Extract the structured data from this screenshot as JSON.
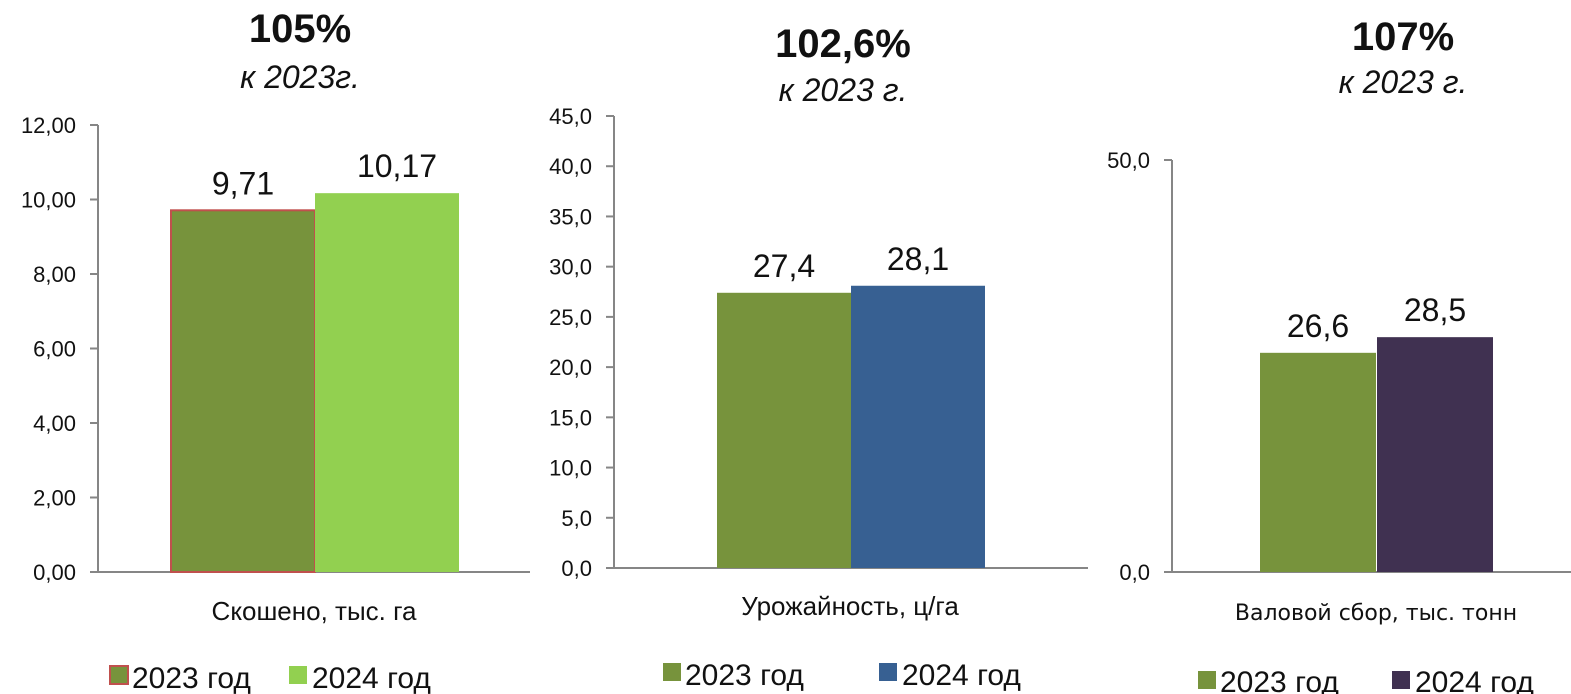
{
  "chart_data": [
    {
      "type": "bar",
      "header": {
        "percent": "105%",
        "subtitle": "к 2023г."
      },
      "categories": [
        "Скошено, тыс. га"
      ],
      "series": [
        {
          "name": "2023 год",
          "values": [
            9.71
          ],
          "label": "9,71",
          "color": "#77933c"
        },
        {
          "name": "2024 год",
          "values": [
            10.17
          ],
          "label": "10,17",
          "color": "#92d050"
        }
      ],
      "ylim": [
        0,
        12
      ],
      "yticks": [
        "0,00",
        "2,00",
        "4,00",
        "6,00",
        "8,00",
        "10,00",
        "12,00"
      ],
      "grid": false,
      "legend_position": "bottom"
    },
    {
      "type": "bar",
      "header": {
        "percent": "102,6%",
        "subtitle": "к 2023 г."
      },
      "categories": [
        "Урожайность, ц/га"
      ],
      "series": [
        {
          "name": "2023 год",
          "values": [
            27.4
          ],
          "label": "27,4",
          "color": "#77933c"
        },
        {
          "name": "2024 год",
          "values": [
            28.1
          ],
          "label": "28,1",
          "color": "#376092"
        }
      ],
      "ylim": [
        0,
        45
      ],
      "yticks": [
        "0,0",
        "5,0",
        "10,0",
        "15,0",
        "20,0",
        "25,0",
        "30,0",
        "35,0",
        "40,0",
        "45,0"
      ],
      "grid": false,
      "legend_position": "bottom"
    },
    {
      "type": "bar",
      "header": {
        "percent": "107%",
        "subtitle": "к  2023 г."
      },
      "categories": [
        "Валовой сбор, тыс. тонн"
      ],
      "series": [
        {
          "name": "2023 год",
          "values": [
            26.6
          ],
          "label": "26,6",
          "color": "#77933c"
        },
        {
          "name": "2024 год",
          "values": [
            28.5
          ],
          "label": "28,5",
          "color": "#403151"
        }
      ],
      "ylim": [
        0,
        50
      ],
      "yticks": [
        "0,0",
        "50,0"
      ],
      "grid": false,
      "legend_position": "bottom"
    }
  ]
}
